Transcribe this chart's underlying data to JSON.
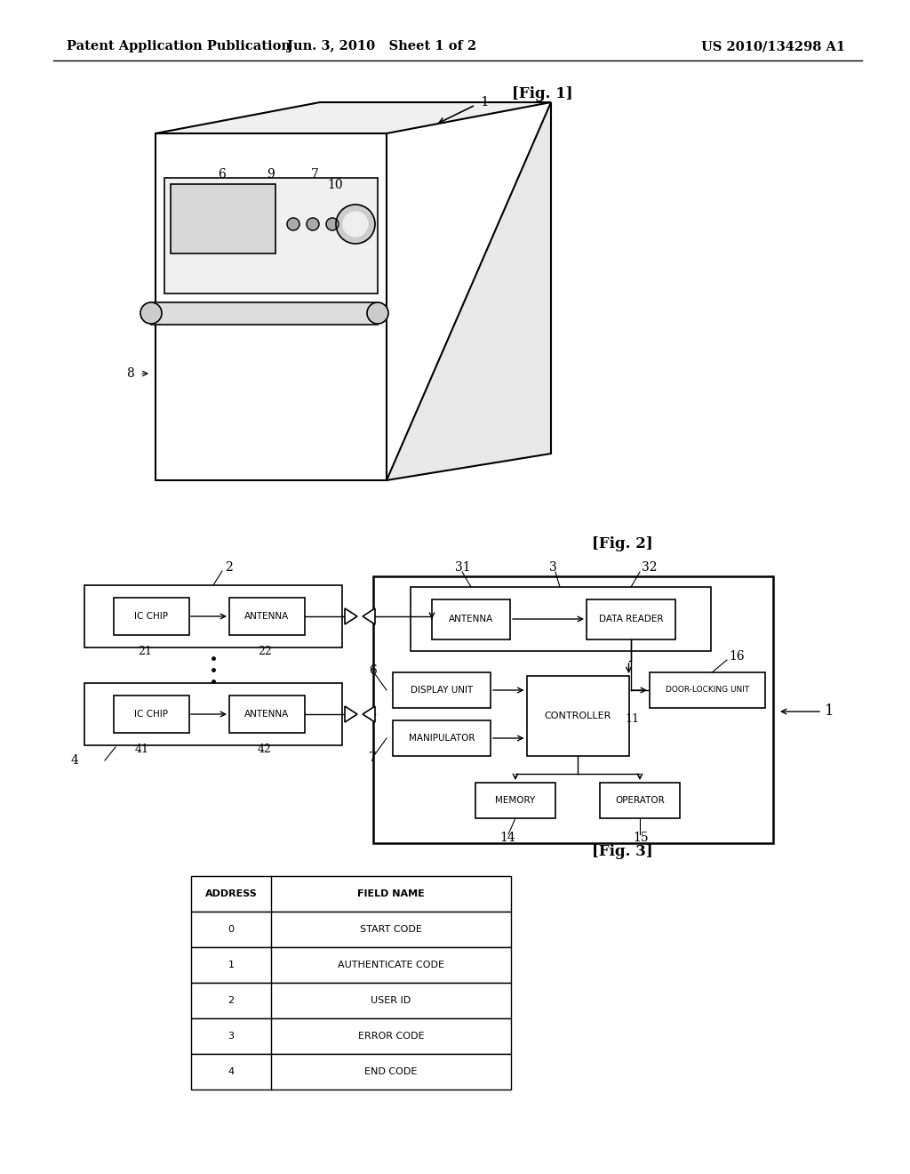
{
  "bg_color": "#ffffff",
  "header_text": [
    "Patent Application Publication",
    "Jun. 3, 2010   Sheet 1 of 2",
    "US 2010/134298 A1"
  ],
  "fig1_label": "[Fig. 1]",
  "fig2_label": "[Fig. 2]",
  "fig3_label": "[Fig. 3]",
  "table_headers": [
    "ADDRESS",
    "FIELD NAME"
  ],
  "table_rows": [
    [
      "0",
      "START CODE"
    ],
    [
      "1",
      "AUTHENTICATE CODE"
    ],
    [
      "2",
      "USER ID"
    ],
    [
      "3",
      "ERROR CODE"
    ],
    [
      "4",
      "END CODE"
    ]
  ]
}
